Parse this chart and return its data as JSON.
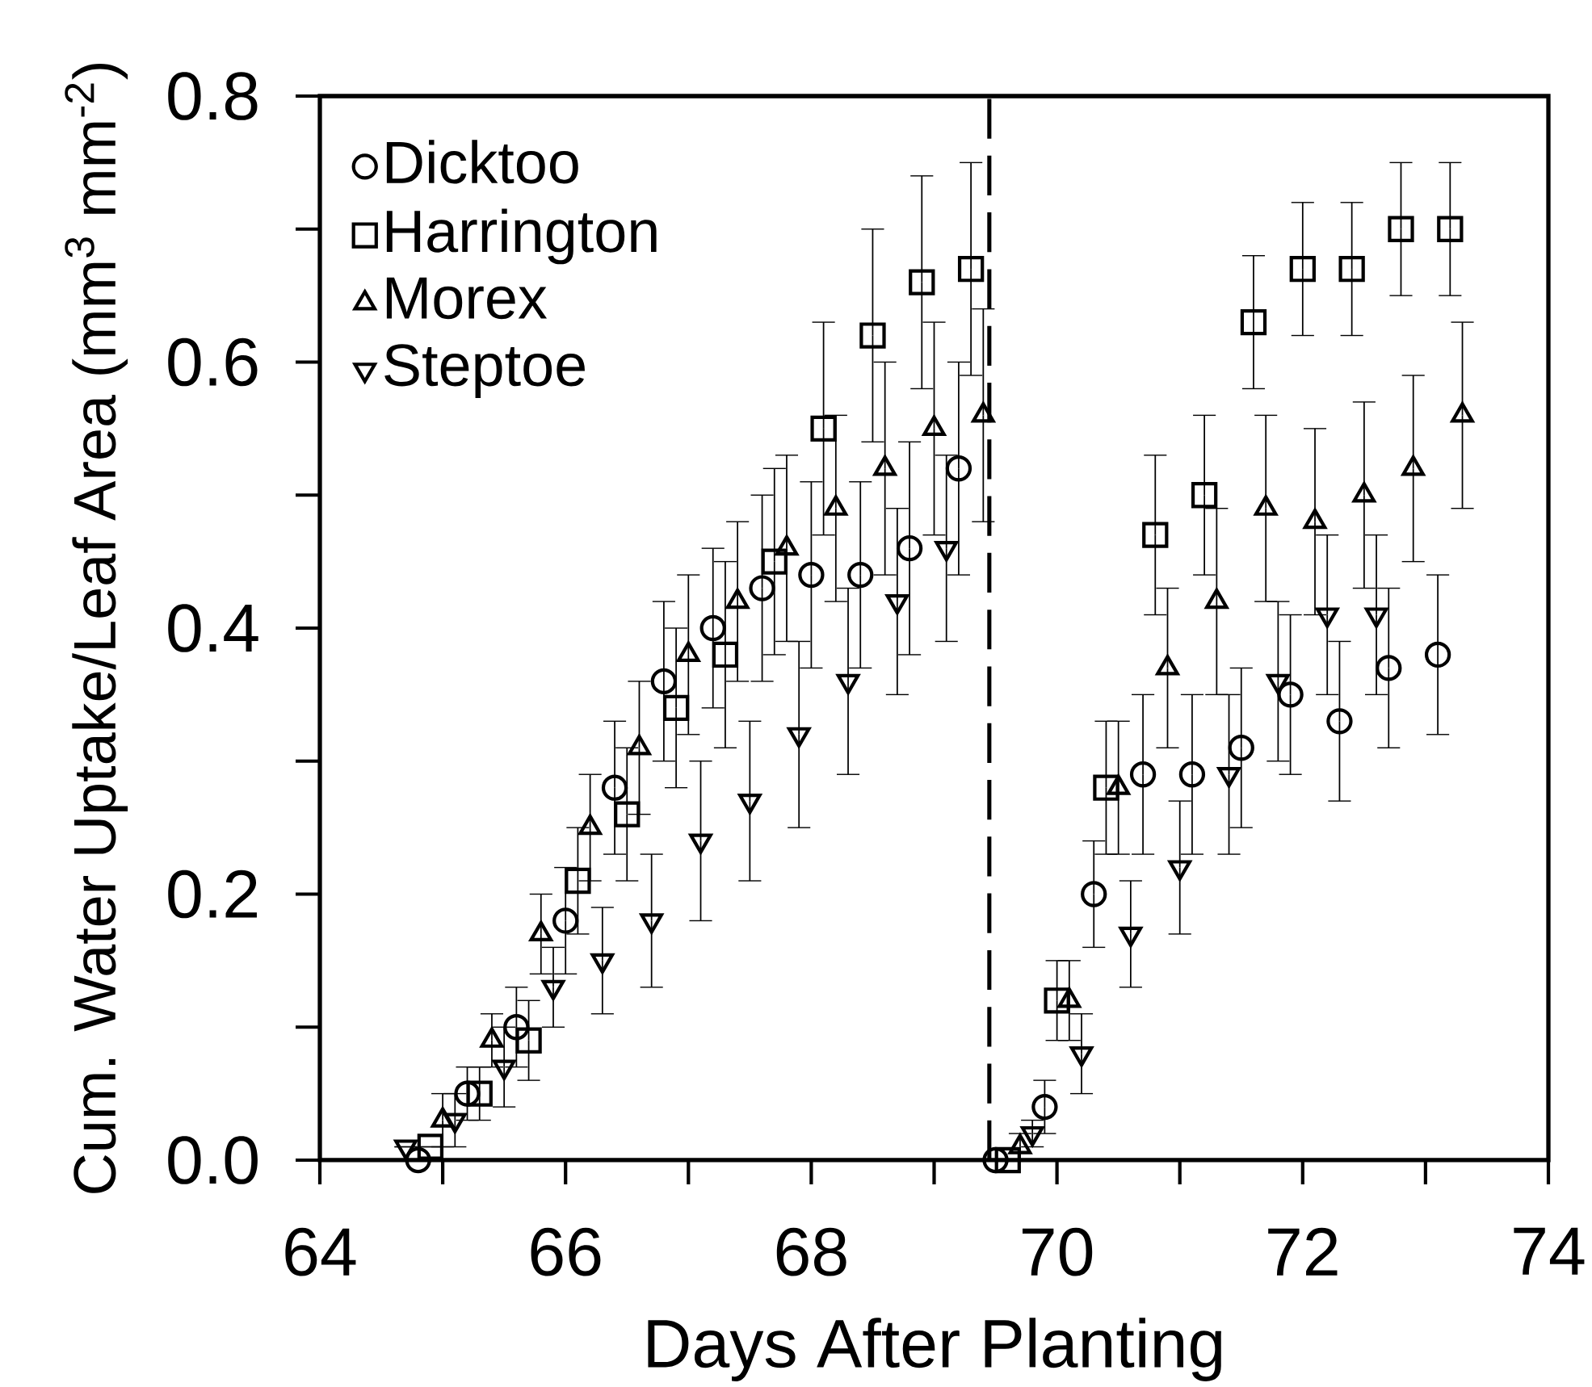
{
  "chart_data": {
    "type": "scatter",
    "xlabel": "Days After Planting",
    "ylabel": "Cum. Water Uptake/Leaf Area (mm$^{3}$ mm$^{-2}$)",
    "xlim": [
      64,
      74
    ],
    "ylim": [
      0,
      0.8
    ],
    "xticks": [
      64,
      66,
      68,
      70,
      72,
      74
    ],
    "yticks": [
      {
        "value": 0,
        "label": "0.0"
      },
      0.2,
      0.4,
      0.6,
      0.8
    ],
    "grid": false,
    "legend": "top left",
    "ref_lines": [
      {
        "axis": "x",
        "value": 69.45,
        "line_style": "dashed"
      }
    ],
    "series": [
      {
        "name": "Dicktoo",
        "color": "#000000",
        "marker": "circle",
        "x": [
          64.8,
          65.2,
          65.6,
          66.0,
          66.4,
          66.8,
          67.2,
          67.6,
          68.0,
          68.4,
          68.8,
          69.2,
          69.5,
          69.9,
          70.3,
          70.7,
          71.1,
          71.5,
          71.9,
          72.3,
          72.7,
          73.1
        ],
        "values": [
          0.0,
          0.05,
          0.1,
          0.18,
          0.28,
          0.36,
          0.4,
          0.43,
          0.44,
          0.44,
          0.46,
          0.52,
          0.0,
          0.04,
          0.2,
          0.29,
          0.29,
          0.31,
          0.35,
          0.33,
          0.37,
          0.38
        ],
        "errors": [
          null,
          0.02,
          0.03,
          0.04,
          0.05,
          0.06,
          0.06,
          0.07,
          0.07,
          0.07,
          0.08,
          0.08,
          null,
          0.02,
          0.04,
          0.06,
          0.06,
          0.06,
          0.06,
          0.06,
          0.06,
          0.06
        ]
      },
      {
        "name": "Harrington",
        "color": "#000000",
        "marker": "square",
        "x": [
          64.9,
          65.3,
          65.7,
          66.1,
          66.5,
          66.9,
          67.3,
          67.7,
          68.1,
          68.5,
          68.9,
          69.3,
          69.6,
          70.0,
          70.4,
          70.8,
          71.2,
          71.6,
          72.0,
          72.4,
          72.8,
          73.2
        ],
        "values": [
          0.01,
          0.05,
          0.09,
          0.21,
          0.26,
          0.34,
          0.38,
          0.45,
          0.55,
          0.62,
          0.66,
          0.67,
          0.0,
          0.12,
          0.28,
          0.47,
          0.5,
          0.63,
          0.67,
          0.67,
          0.7,
          0.7
        ],
        "errors": [
          null,
          0.02,
          0.03,
          0.04,
          0.05,
          0.06,
          0.07,
          0.07,
          0.08,
          0.08,
          0.08,
          0.08,
          null,
          0.03,
          0.05,
          0.06,
          0.06,
          0.05,
          0.05,
          0.05,
          0.05,
          0.05
        ]
      },
      {
        "name": "Morex",
        "color": "#000000",
        "marker": "triangle",
        "x": [
          65.0,
          65.4,
          65.8,
          66.2,
          66.6,
          67.0,
          67.4,
          67.8,
          68.2,
          68.6,
          69.0,
          69.4,
          69.7,
          70.1,
          70.5,
          70.9,
          71.3,
          71.7,
          72.1,
          72.5,
          72.9,
          73.3
        ],
        "values": [
          0.03,
          0.09,
          0.17,
          0.25,
          0.31,
          0.38,
          0.42,
          0.46,
          0.49,
          0.52,
          0.55,
          0.56,
          0.01,
          0.12,
          0.28,
          0.37,
          0.42,
          0.49,
          0.48,
          0.5,
          0.52,
          0.56
        ],
        "errors": [
          0.02,
          0.02,
          0.03,
          0.04,
          0.05,
          0.06,
          0.06,
          0.07,
          0.07,
          0.08,
          0.08,
          0.08,
          0.01,
          0.03,
          0.05,
          0.06,
          0.07,
          0.07,
          0.07,
          0.07,
          0.07,
          0.07
        ]
      },
      {
        "name": "Steptoe",
        "color": "#000000",
        "marker": "triangle_down",
        "x": [
          64.7,
          65.1,
          65.5,
          65.9,
          66.3,
          66.7,
          67.1,
          67.5,
          67.9,
          68.3,
          68.7,
          69.1,
          69.8,
          70.2,
          70.6,
          71.0,
          71.4,
          71.8,
          72.2,
          72.6
        ],
        "values": [
          0.01,
          0.03,
          0.07,
          0.13,
          0.15,
          0.18,
          0.24,
          0.27,
          0.32,
          0.36,
          0.42,
          0.46,
          0.02,
          0.08,
          0.17,
          0.22,
          0.29,
          0.36,
          0.41,
          0.41
        ],
        "errors": [
          null,
          0.02,
          0.03,
          0.03,
          0.04,
          0.05,
          0.06,
          0.06,
          0.07,
          0.07,
          0.07,
          0.07,
          0.01,
          0.03,
          0.04,
          0.05,
          0.06,
          0.06,
          0.06,
          0.06
        ]
      }
    ]
  }
}
